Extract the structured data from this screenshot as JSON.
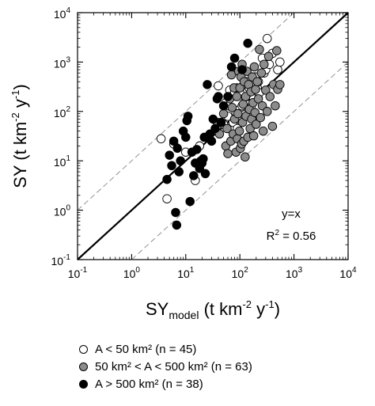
{
  "chart_data": {
    "type": "scatter",
    "x_scale": "log",
    "y_scale": "log",
    "xlim": [
      0.1,
      10000
    ],
    "ylim": [
      0.1,
      10000
    ],
    "x_tick_labels": [
      "10-1",
      "100",
      "101",
      "102",
      "103",
      "104"
    ],
    "y_tick_labels": [
      "10-1",
      "100",
      "101",
      "102",
      "103",
      "104"
    ],
    "xlabel": {
      "base": "SY",
      "sub": "model",
      "rest": " (t km",
      "exp1": "-2",
      "mid": " y",
      "exp2": "-1",
      "end": ")"
    },
    "ylabel": {
      "base": "SY (t km",
      "exp1": "-2",
      "mid": " y",
      "exp2": "-1",
      "end": ")"
    },
    "annotation_line": "y=x",
    "annotation_r2": {
      "base": "R",
      "exp": "2",
      "rest": " = 0.56"
    },
    "reference_lines": {
      "one_to_one": 1,
      "bounds_factor": 10
    },
    "grid": false,
    "legend_position": "below",
    "series": [
      {
        "name": "A < 50 km² (n = 45)",
        "color": "#ffffff",
        "points": [
          [
            3.5,
            28
          ],
          [
            4.5,
            1.7
          ],
          [
            6,
            22
          ],
          [
            10,
            15
          ],
          [
            15,
            4
          ],
          [
            18,
            20
          ],
          [
            40,
            330
          ],
          [
            50,
            55
          ],
          [
            55,
            150
          ],
          [
            60,
            80
          ],
          [
            62,
            130
          ],
          [
            65,
            270
          ],
          [
            70,
            200
          ],
          [
            75,
            60
          ],
          [
            80,
            250
          ],
          [
            85,
            95
          ],
          [
            88,
            300
          ],
          [
            90,
            45
          ],
          [
            92,
            70
          ],
          [
            100,
            110
          ],
          [
            105,
            230
          ],
          [
            110,
            130
          ],
          [
            115,
            330
          ],
          [
            120,
            85
          ],
          [
            125,
            160
          ],
          [
            130,
            400
          ],
          [
            135,
            200
          ],
          [
            140,
            260
          ],
          [
            150,
            290
          ],
          [
            160,
            120
          ],
          [
            170,
            200
          ],
          [
            180,
            180
          ],
          [
            190,
            500
          ],
          [
            200,
            260
          ],
          [
            210,
            300
          ],
          [
            220,
            400
          ],
          [
            230,
            240
          ],
          [
            260,
            1200
          ],
          [
            280,
            600
          ],
          [
            300,
            700
          ],
          [
            320,
            3000
          ],
          [
            350,
            900
          ],
          [
            400,
            1500
          ],
          [
            500,
            700
          ],
          [
            550,
            1000
          ]
        ]
      },
      {
        "name": "50 km² < A < 500 km² (n = 63)",
        "color": "#8c8c8c",
        "points": [
          [
            38,
            60
          ],
          [
            42,
            35
          ],
          [
            50,
            90
          ],
          [
            55,
            20
          ],
          [
            58,
            45
          ],
          [
            60,
            14
          ],
          [
            65,
            180
          ],
          [
            68,
            25
          ],
          [
            70,
            550
          ],
          [
            72,
            120
          ],
          [
            75,
            35
          ],
          [
            78,
            300
          ],
          [
            80,
            70
          ],
          [
            85,
            15
          ],
          [
            88,
            200
          ],
          [
            90,
            28
          ],
          [
            92,
            90
          ],
          [
            95,
            650
          ],
          [
            98,
            40
          ],
          [
            100,
            300
          ],
          [
            102,
            18
          ],
          [
            105,
            500
          ],
          [
            108,
            22
          ],
          [
            110,
            900
          ],
          [
            112,
            60
          ],
          [
            115,
            140
          ],
          [
            118,
            25
          ],
          [
            120,
            400
          ],
          [
            125,
            12
          ],
          [
            128,
            200
          ],
          [
            130,
            80
          ],
          [
            135,
            650
          ],
          [
            140,
            30
          ],
          [
            145,
            350
          ],
          [
            150,
            110
          ],
          [
            155,
            45
          ],
          [
            160,
            250
          ],
          [
            165,
            70
          ],
          [
            170,
            500
          ],
          [
            175,
            150
          ],
          [
            180,
            32
          ],
          [
            185,
            800
          ],
          [
            190,
            95
          ],
          [
            195,
            280
          ],
          [
            200,
            55
          ],
          [
            210,
            400
          ],
          [
            220,
            180
          ],
          [
            230,
            1800
          ],
          [
            240,
            75
          ],
          [
            250,
            600
          ],
          [
            260,
            130
          ],
          [
            270,
            40
          ],
          [
            280,
            900
          ],
          [
            300,
            270
          ],
          [
            320,
            100
          ],
          [
            340,
            1300
          ],
          [
            360,
            200
          ],
          [
            400,
            50
          ],
          [
            420,
            350
          ],
          [
            450,
            130
          ],
          [
            480,
            1700
          ],
          [
            500,
            280
          ],
          [
            550,
            350
          ]
        ]
      },
      {
        "name": "A > 500 km² (n = 38)",
        "color": "#000000",
        "points": [
          [
            4.5,
            4.2
          ],
          [
            5,
            13
          ],
          [
            5.5,
            8
          ],
          [
            6,
            25
          ],
          [
            6.5,
            0.9
          ],
          [
            6.8,
            0.5
          ],
          [
            7,
            18
          ],
          [
            7.5,
            6
          ],
          [
            8,
            10
          ],
          [
            9,
            40
          ],
          [
            10,
            30
          ],
          [
            10.5,
            65
          ],
          [
            11,
            80
          ],
          [
            12,
            1.5
          ],
          [
            13,
            15
          ],
          [
            14,
            5
          ],
          [
            15,
            9
          ],
          [
            16,
            17
          ],
          [
            18,
            7
          ],
          [
            19,
            10
          ],
          [
            20,
            9
          ],
          [
            21,
            11
          ],
          [
            22,
            30
          ],
          [
            23,
            5.5
          ],
          [
            25,
            350
          ],
          [
            28,
            35
          ],
          [
            30,
            25
          ],
          [
            32,
            70
          ],
          [
            35,
            45
          ],
          [
            38,
            180
          ],
          [
            40,
            200
          ],
          [
            45,
            60
          ],
          [
            50,
            130
          ],
          [
            60,
            200
          ],
          [
            70,
            800
          ],
          [
            80,
            1200
          ],
          [
            110,
            700
          ],
          [
            140,
            2400
          ]
        ]
      }
    ]
  }
}
